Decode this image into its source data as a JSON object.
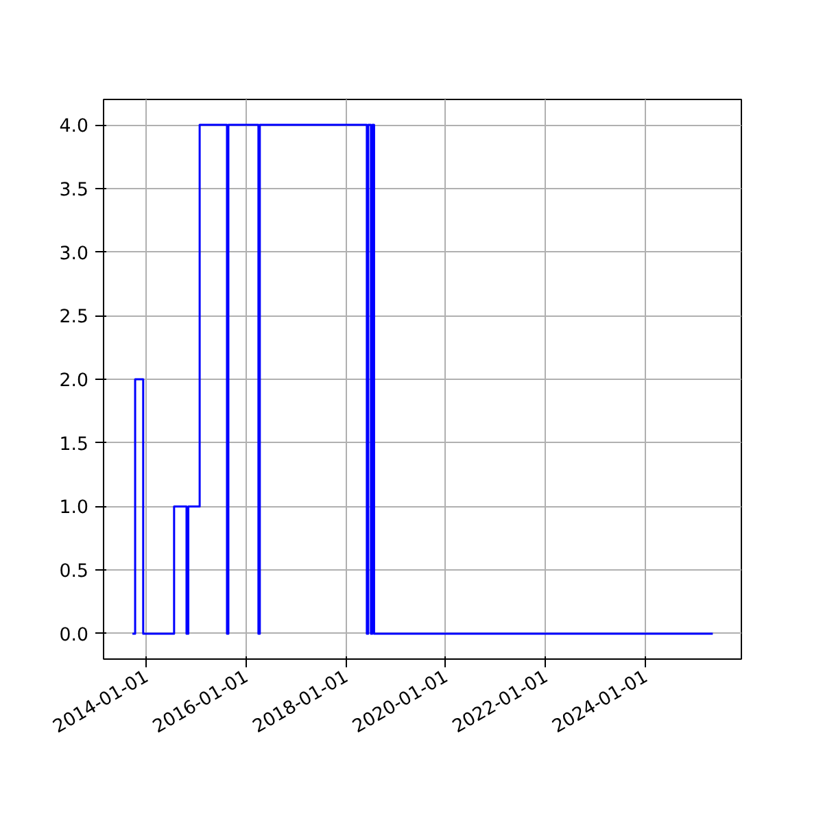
{
  "chart_data": {
    "type": "step",
    "color": "#0000ff",
    "x": [
      "2013-09-22",
      "2013-10-12",
      "2013-12-10",
      "2014-07-24",
      "2014-10-23",
      "2014-11-05",
      "2015-01-27",
      "2015-08-15",
      "2015-08-25",
      "2016-04-01",
      "2016-04-11",
      "2018-06-03",
      "2018-06-13",
      "2018-07-03",
      "2018-07-13",
      "2018-07-26",
      "2025-05-08"
    ],
    "values": [
      0,
      2,
      0,
      1,
      0,
      1,
      4,
      0,
      4,
      0,
      4,
      0,
      4,
      0,
      4,
      0,
      0
    ],
    "xlim": [
      "2013-02-23",
      "2025-12-03"
    ],
    "xticks": [
      "2014-01-01",
      "2016-01-01",
      "2018-01-01",
      "2020-01-01",
      "2022-01-01",
      "2024-01-01"
    ],
    "ylim": [
      -0.2,
      4.2
    ],
    "yticks": [
      {
        "value": 0,
        "label": "0.0"
      },
      {
        "value": 0.5,
        "label": "0.5"
      },
      {
        "value": 1,
        "label": "1.0"
      },
      {
        "value": 1.5,
        "label": "1.5"
      },
      {
        "value": 2,
        "label": "2.0"
      },
      {
        "value": 2.5,
        "label": "2.5"
      },
      {
        "value": 3,
        "label": "3.0"
      },
      {
        "value": 3.5,
        "label": "3.5"
      },
      {
        "value": 4,
        "label": "4.0"
      }
    ],
    "grid": true
  }
}
